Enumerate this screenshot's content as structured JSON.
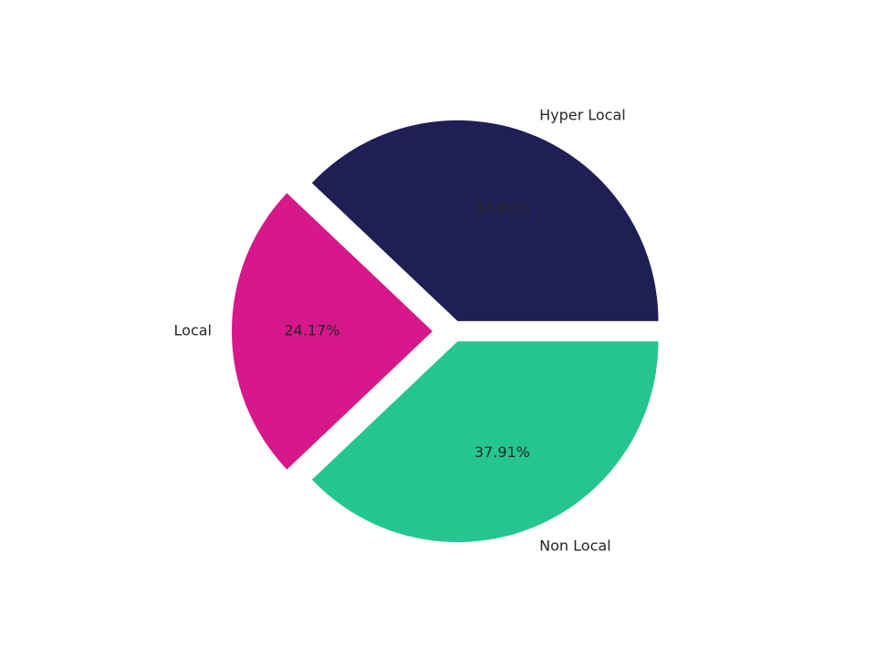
{
  "chart_data": {
    "type": "pie",
    "title": "",
    "slices": [
      {
        "label": "Hyper Local",
        "value": 37.92,
        "pct_label": "37.92%",
        "color": "#1f1f55",
        "explode": false
      },
      {
        "label": "Local",
        "value": 24.17,
        "pct_label": "24.17%",
        "color": "#d6188a",
        "explode": true
      },
      {
        "label": "Non Local",
        "value": 37.91,
        "pct_label": "37.91%",
        "color": "#25c591",
        "explode": false
      }
    ],
    "start_angle_deg": 0,
    "direction": "counterclockwise",
    "legend": "none"
  }
}
